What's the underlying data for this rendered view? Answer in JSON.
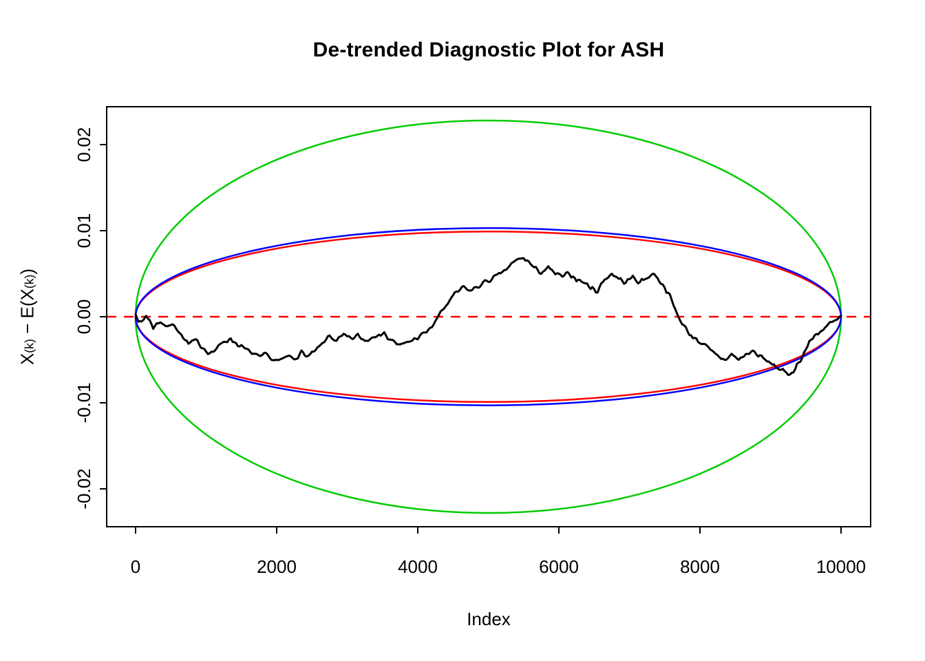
{
  "chart_data": {
    "type": "line",
    "title": "De-trended Diagnostic Plot for ASH",
    "xlabel": "Index",
    "ylabel": "X(k) − E(X(k))",
    "ylabel_parts": [
      {
        "text": "X",
        "sub": false
      },
      {
        "text": "(k)",
        "sub": true
      },
      {
        "text": " − E(X",
        "sub": false
      },
      {
        "text": "(k)",
        "sub": true
      },
      {
        "text": ")",
        "sub": false
      }
    ],
    "xlim": [
      -400,
      10400
    ],
    "ylim": [
      -0.0244,
      0.0244
    ],
    "grid": false,
    "legend": null,
    "x_ticks": {
      "values": [
        0,
        2000,
        4000,
        6000,
        8000,
        10000
      ],
      "labels": [
        "0",
        "2000",
        "4000",
        "6000",
        "8000",
        "10000"
      ]
    },
    "y_ticks": {
      "values": [
        -0.02,
        -0.01,
        0,
        0.01,
        0.02
      ],
      "labels": [
        "-0.02",
        "-0.01",
        "0.00",
        "0.01",
        "0.02"
      ]
    },
    "reference_line": {
      "y": 0,
      "color": "#FF0000",
      "style": "dashed"
    },
    "ellipses": [
      {
        "name": "outer-green-boundary",
        "center_x": 5000,
        "center_y": 0,
        "rx": 5000,
        "ry": 0.0228,
        "color": "#00CC00"
      },
      {
        "name": "inner-red-boundary",
        "center_x": 5000,
        "center_y": 0,
        "rx": 5000,
        "ry": 0.0099,
        "color": "#FF0000"
      },
      {
        "name": "inner-blue-boundary",
        "center_x": 5000,
        "center_y": 0,
        "rx": 5000,
        "ry": 0.0103,
        "color": "#0000FF"
      }
    ],
    "series": [
      {
        "name": "detrended-order-statistics",
        "color": "#000000",
        "line_width": 3,
        "noise": {
          "seed": 7,
          "amplitude": 0.00035,
          "subdivisions": 4
        },
        "anchors": [
          [
            0,
            0.0003
          ],
          [
            80,
            -0.0008
          ],
          [
            150,
            0.0002
          ],
          [
            250,
            -0.0012
          ],
          [
            350,
            -0.0005
          ],
          [
            450,
            -0.0012
          ],
          [
            550,
            -0.0008
          ],
          [
            650,
            -0.0022
          ],
          [
            750,
            -0.0032
          ],
          [
            850,
            -0.0028
          ],
          [
            950,
            -0.0035
          ],
          [
            1050,
            -0.0042
          ],
          [
            1150,
            -0.0038
          ],
          [
            1250,
            -0.0028
          ],
          [
            1350,
            -0.0026
          ],
          [
            1450,
            -0.0032
          ],
          [
            1550,
            -0.0038
          ],
          [
            1650,
            -0.0042
          ],
          [
            1750,
            -0.0048
          ],
          [
            1850,
            -0.0044
          ],
          [
            1950,
            -0.005
          ],
          [
            2050,
            -0.0052
          ],
          [
            2150,
            -0.0046
          ],
          [
            2250,
            -0.0048
          ],
          [
            2350,
            -0.0042
          ],
          [
            2450,
            -0.0046
          ],
          [
            2550,
            -0.004
          ],
          [
            2650,
            -0.0032
          ],
          [
            2750,
            -0.0022
          ],
          [
            2850,
            -0.0028
          ],
          [
            2950,
            -0.0022
          ],
          [
            3050,
            -0.0026
          ],
          [
            3150,
            -0.0022
          ],
          [
            3250,
            -0.0028
          ],
          [
            3350,
            -0.0024
          ],
          [
            3450,
            -0.0018
          ],
          [
            3550,
            -0.0022
          ],
          [
            3650,
            -0.0028
          ],
          [
            3750,
            -0.0034
          ],
          [
            3850,
            -0.003
          ],
          [
            3950,
            -0.0026
          ],
          [
            4050,
            -0.0022
          ],
          [
            4150,
            -0.0016
          ],
          [
            4250,
            -0.0006
          ],
          [
            4350,
            0.0008
          ],
          [
            4450,
            0.0018
          ],
          [
            4550,
            0.0028
          ],
          [
            4650,
            0.0034
          ],
          [
            4750,
            0.003
          ],
          [
            4850,
            0.0035
          ],
          [
            4950,
            0.004
          ],
          [
            5050,
            0.0044
          ],
          [
            5150,
            0.0048
          ],
          [
            5250,
            0.0055
          ],
          [
            5350,
            0.0062
          ],
          [
            5450,
            0.0068
          ],
          [
            5550,
            0.0066
          ],
          [
            5650,
            0.0056
          ],
          [
            5750,
            0.0052
          ],
          [
            5850,
            0.0056
          ],
          [
            5950,
            0.005
          ],
          [
            6050,
            0.0046
          ],
          [
            6150,
            0.005
          ],
          [
            6250,
            0.0044
          ],
          [
            6350,
            0.004
          ],
          [
            6450,
            0.0034
          ],
          [
            6550,
            0.003
          ],
          [
            6650,
            0.0044
          ],
          [
            6750,
            0.005
          ],
          [
            6850,
            0.0044
          ],
          [
            6950,
            0.004
          ],
          [
            7050,
            0.0046
          ],
          [
            7150,
            0.004
          ],
          [
            7250,
            0.0046
          ],
          [
            7350,
            0.005
          ],
          [
            7450,
            0.004
          ],
          [
            7550,
            0.0028
          ],
          [
            7650,
            0.0008
          ],
          [
            7750,
            -0.0008
          ],
          [
            7850,
            -0.002
          ],
          [
            7950,
            -0.0026
          ],
          [
            8050,
            -0.0032
          ],
          [
            8150,
            -0.004
          ],
          [
            8250,
            -0.0046
          ],
          [
            8350,
            -0.005
          ],
          [
            8450,
            -0.0044
          ],
          [
            8550,
            -0.005
          ],
          [
            8650,
            -0.0044
          ],
          [
            8750,
            -0.004
          ],
          [
            8850,
            -0.0046
          ],
          [
            8950,
            -0.0052
          ],
          [
            9050,
            -0.0056
          ],
          [
            9150,
            -0.0062
          ],
          [
            9250,
            -0.0068
          ],
          [
            9350,
            -0.006
          ],
          [
            9450,
            -0.0046
          ],
          [
            9550,
            -0.003
          ],
          [
            9650,
            -0.002
          ],
          [
            9750,
            -0.0014
          ],
          [
            9850,
            -0.0008
          ],
          [
            9950,
            -0.0004
          ],
          [
            10000,
            0.0001
          ]
        ]
      }
    ]
  }
}
